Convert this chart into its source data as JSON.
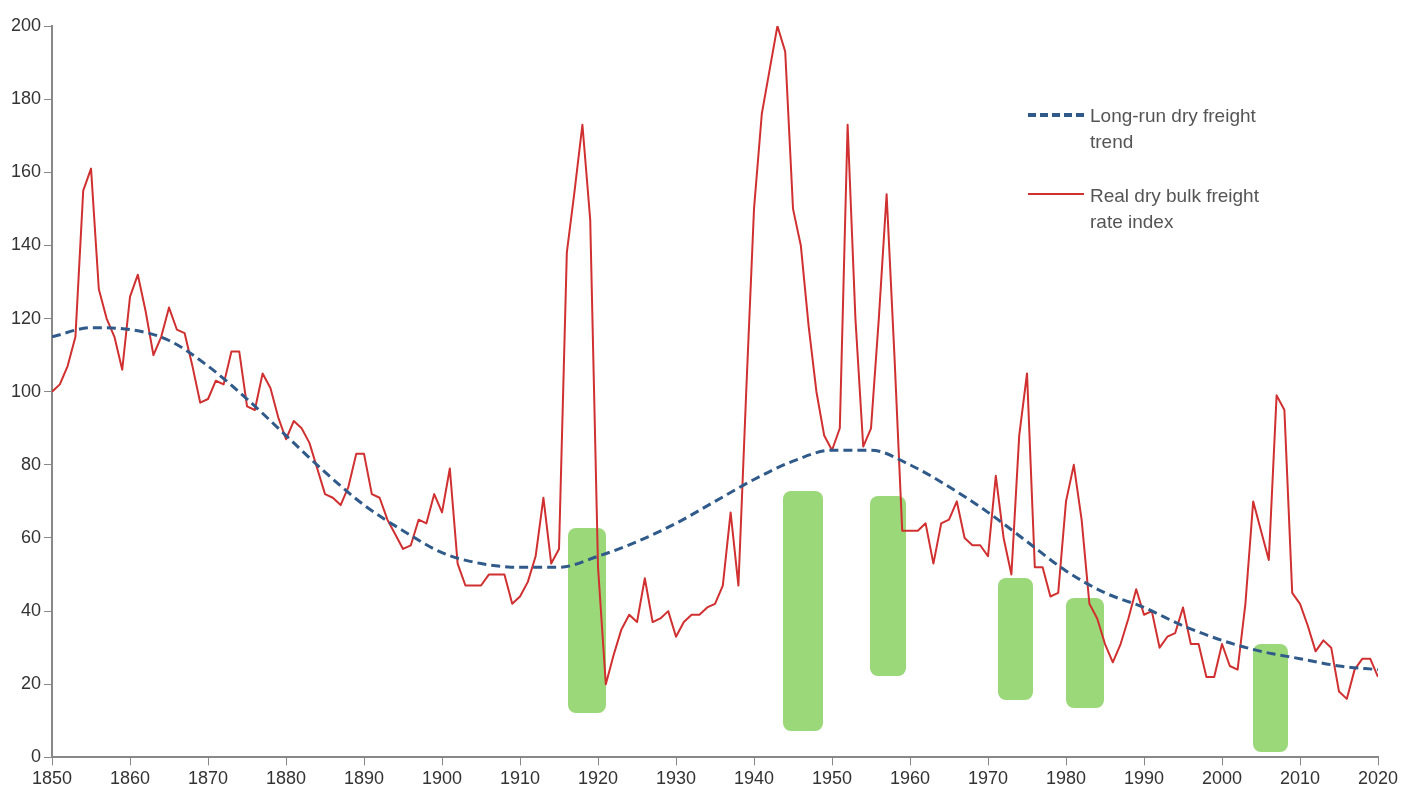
{
  "chart_data": {
    "type": "line",
    "xlim": [
      1850,
      2020
    ],
    "xticks": [
      1850,
      1860,
      1870,
      1880,
      1890,
      1900,
      1910,
      1920,
      1930,
      1940,
      1950,
      1960,
      1970,
      1980,
      1990,
      2000,
      2010,
      2020
    ],
    "ylim": [
      0,
      200
    ],
    "yticks": [
      0,
      20,
      40,
      60,
      80,
      100,
      120,
      140,
      160,
      180,
      200
    ],
    "grid": false,
    "legend": "top right",
    "marker": "none",
    "series": [
      {
        "name": "Long-run dry freight trend",
        "color": "#2f5a8a",
        "line_style": "dashed",
        "x": [
          1850,
          1855,
          1860,
          1865,
          1870,
          1875,
          1880,
          1885,
          1890,
          1895,
          1900,
          1905,
          1910,
          1915,
          1920,
          1925,
          1930,
          1935,
          1940,
          1945,
          1950,
          1955,
          1960,
          1965,
          1970,
          1975,
          1980,
          1985,
          1990,
          1995,
          2000,
          2005,
          2010,
          2015,
          2020
        ],
        "values": [
          115,
          117.5,
          117,
          114,
          107,
          98,
          88,
          78,
          69,
          62,
          56,
          53,
          52,
          52,
          55,
          59,
          64,
          70,
          76,
          81,
          84,
          84,
          80,
          74,
          67,
          59,
          51,
          45,
          41,
          36,
          32,
          29,
          27,
          25,
          24
        ]
      },
      {
        "name": "Real dry bulk freight rate index",
        "color": "#d03030",
        "line_style": "solid",
        "x": [
          1850,
          1851,
          1852,
          1853,
          1854,
          1855,
          1856,
          1857,
          1858,
          1859,
          1860,
          1861,
          1862,
          1863,
          1864,
          1865,
          1866,
          1867,
          1868,
          1869,
          1870,
          1871,
          1872,
          1873,
          1874,
          1875,
          1876,
          1877,
          1878,
          1879,
          1880,
          1881,
          1882,
          1883,
          1884,
          1885,
          1886,
          1887,
          1888,
          1889,
          1890,
          1891,
          1892,
          1893,
          1894,
          1895,
          1896,
          1897,
          1898,
          1899,
          1900,
          1901,
          1902,
          1903,
          1904,
          1905,
          1906,
          1907,
          1908,
          1909,
          1910,
          1911,
          1912,
          1913,
          1914,
          1915,
          1916,
          1917,
          1918,
          1919,
          1920,
          1921,
          1922,
          1923,
          1924,
          1925,
          1926,
          1927,
          1928,
          1929,
          1930,
          1931,
          1932,
          1933,
          1934,
          1935,
          1936,
          1937,
          1938,
          1939,
          1940,
          1941,
          1942,
          1943,
          1944,
          1945,
          1946,
          1947,
          1948,
          1949,
          1950,
          1951,
          1952,
          1953,
          1954,
          1955,
          1956,
          1957,
          1958,
          1959,
          1960,
          1961,
          1962,
          1963,
          1964,
          1965,
          1966,
          1967,
          1968,
          1969,
          1970,
          1971,
          1972,
          1973,
          1974,
          1975,
          1976,
          1977,
          1978,
          1979,
          1980,
          1981,
          1982,
          1983,
          1984,
          1985,
          1986,
          1987,
          1988,
          1989,
          1990,
          1991,
          1992,
          1993,
          1994,
          1995,
          1996,
          1997,
          1998,
          1999,
          2000,
          2001,
          2002,
          2003,
          2004,
          2005,
          2006,
          2007,
          2008,
          2009,
          2010,
          2011,
          2012,
          2013,
          2014,
          2015,
          2016,
          2017,
          2018,
          2019,
          2020
        ],
        "values": [
          100,
          102,
          107,
          115,
          155,
          161,
          128,
          120,
          115,
          106,
          126,
          132,
          122,
          110,
          115,
          123,
          117,
          116,
          107,
          97,
          98,
          103,
          102,
          111,
          111,
          96,
          95,
          105,
          101,
          93,
          87,
          92,
          90,
          86,
          79,
          72,
          71,
          69,
          74,
          83,
          83,
          72,
          71,
          65,
          61,
          57,
          58,
          65,
          64,
          72,
          67,
          79,
          53,
          47,
          47,
          47,
          50,
          50,
          50,
          42,
          44,
          48,
          55,
          71,
          53,
          57,
          138,
          155,
          173,
          147,
          52,
          20,
          28,
          35,
          39,
          37,
          49,
          37,
          38,
          40,
          33,
          37,
          39,
          39,
          41,
          42,
          47,
          67,
          47,
          100,
          150,
          176,
          188,
          200,
          193,
          150,
          140,
          118,
          100,
          88,
          84,
          90,
          173,
          120,
          85,
          90,
          120,
          154,
          110,
          62,
          62,
          62,
          64,
          53,
          64,
          65,
          70,
          60,
          58,
          58,
          55,
          77,
          60,
          50,
          88,
          105,
          52,
          52,
          44,
          45,
          70,
          80,
          65,
          42,
          38,
          31,
          26,
          31,
          38,
          46,
          39,
          40,
          30,
          33,
          34,
          41,
          31,
          31,
          22,
          22,
          31,
          25,
          24,
          42,
          70,
          62,
          54,
          99,
          95,
          45,
          42,
          36,
          29,
          32,
          30,
          18,
          16,
          24,
          27,
          27,
          22
        ]
      }
    ]
  }
}
